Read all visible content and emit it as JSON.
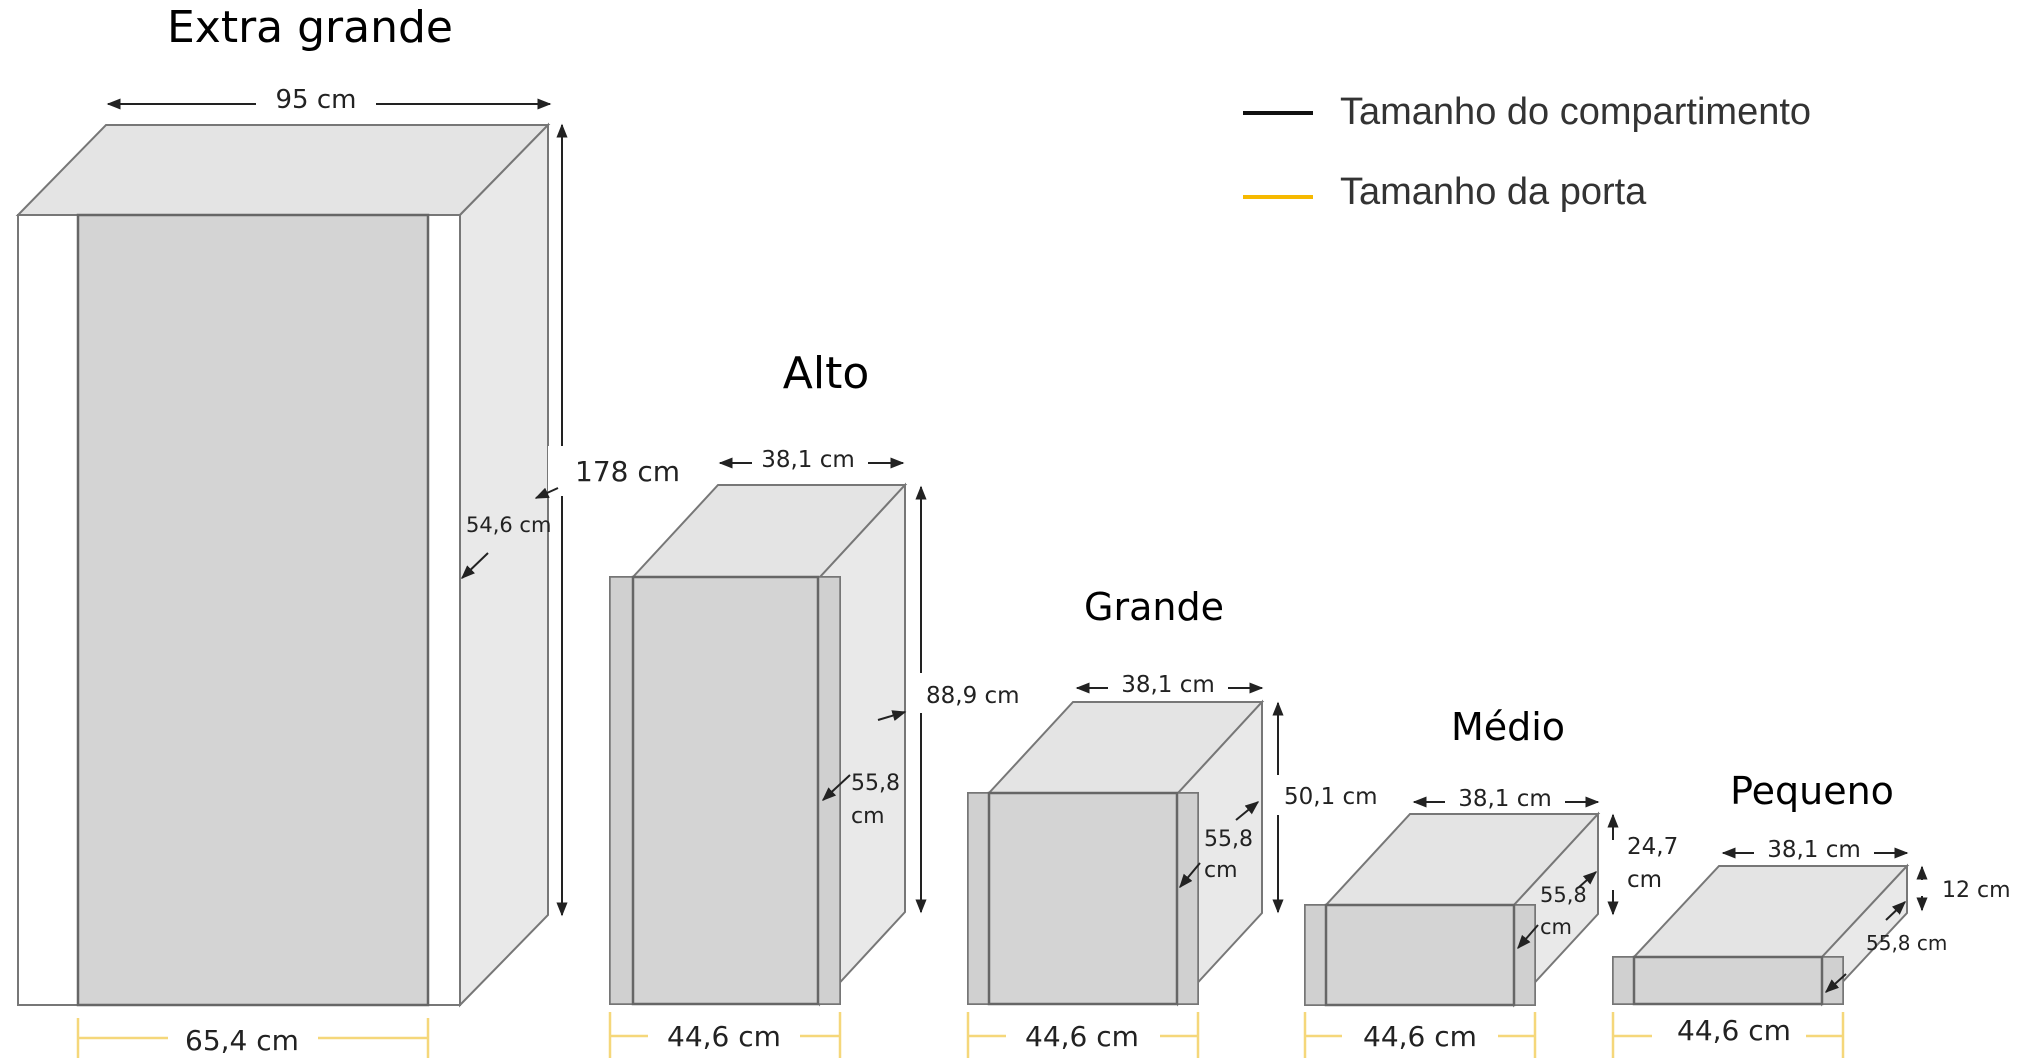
{
  "legend": {
    "compartment": {
      "label": "Tamanho do compartimento",
      "color": "#111111"
    },
    "door": {
      "label": "Tamanho da porta",
      "color": "#f6b900"
    }
  },
  "lockers": {
    "extra_grande": {
      "title": "Extra grande",
      "width": "95 cm",
      "height": "178 cm",
      "depth": "54,6 cm",
      "door": "65,4 cm"
    },
    "alto": {
      "title": "Alto",
      "width": "38,1 cm",
      "height": "88,9 cm",
      "depth_line1": "55,8",
      "depth_line2": "cm",
      "door": "44,6 cm"
    },
    "grande": {
      "title": "Grande",
      "width": "38,1 cm",
      "height": "50,1 cm",
      "depth_line1": "55,8",
      "depth_line2": "cm",
      "door": "44,6 cm"
    },
    "medio": {
      "title": "Médio",
      "width": "38,1 cm",
      "height_line1": "24,7",
      "height_line2": "cm",
      "depth_line1": "55,8",
      "depth_line2": "cm",
      "door": "44,6 cm"
    },
    "pequeno": {
      "title": "Pequeno",
      "width": "38,1 cm",
      "height": "12 cm",
      "depth": "55,8 cm",
      "door": "44,6 cm"
    }
  }
}
